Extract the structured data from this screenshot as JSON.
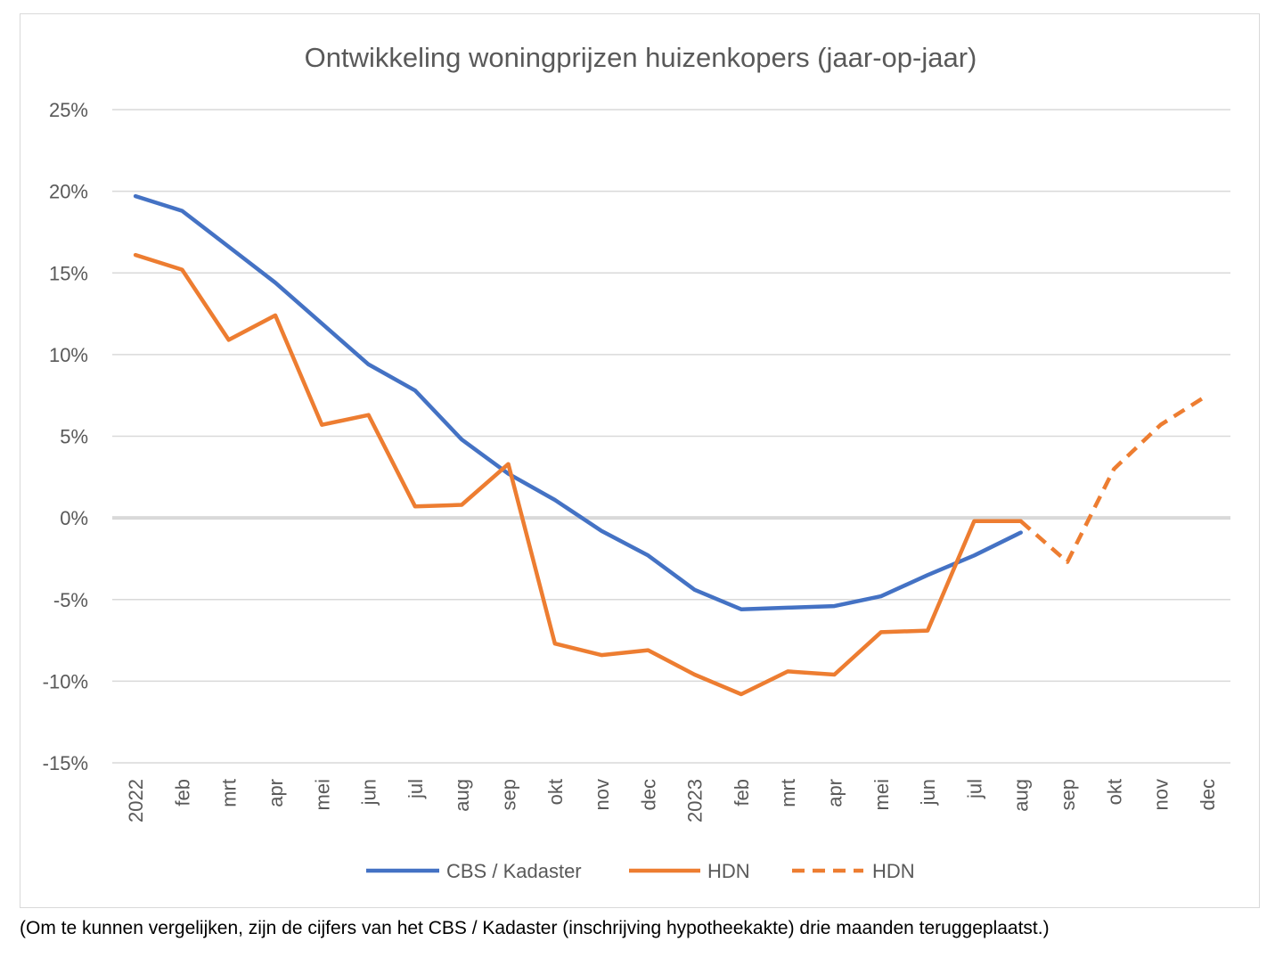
{
  "chart_data": {
    "type": "line",
    "title": "Ontwikkeling woningprijzen huizenkopers (jaar-op-jaar)",
    "xlabel": "",
    "ylabel": "",
    "categories": [
      "2022",
      "feb",
      "mrt",
      "apr",
      "mei",
      "jun",
      "jul",
      "aug",
      "sep",
      "okt",
      "nov",
      "dec",
      "2023",
      "feb",
      "mrt",
      "apr",
      "mei",
      "jun",
      "jul",
      "aug",
      "sep",
      "okt",
      "nov",
      "dec"
    ],
    "y_ticks": [
      "25%",
      "20%",
      "15%",
      "10%",
      "5%",
      "0%",
      "-5%",
      "-10%",
      "-15%"
    ],
    "ylim": [
      -15,
      25
    ],
    "grid": true,
    "legend_position": "bottom",
    "series": [
      {
        "name": "CBS / Kadaster",
        "color": "#4472c4",
        "style": "solid",
        "values": [
          19.7,
          18.8,
          16.6,
          14.4,
          11.9,
          9.4,
          7.8,
          4.8,
          2.7,
          1.1,
          -0.8,
          -2.3,
          -4.4,
          -5.6,
          -5.5,
          -5.4,
          -4.8,
          -3.5,
          -2.3,
          -0.9,
          null,
          null,
          null,
          null
        ]
      },
      {
        "name": "HDN",
        "color": "#ed7d31",
        "style": "solid",
        "values": [
          16.1,
          15.2,
          10.9,
          12.4,
          5.7,
          6.3,
          0.7,
          0.8,
          3.3,
          -7.7,
          -8.4,
          -8.1,
          -9.6,
          -10.8,
          -9.4,
          -9.6,
          -7.0,
          -6.9,
          -0.2,
          -0.2,
          null,
          null,
          null,
          null
        ]
      },
      {
        "name": "HDN",
        "color": "#ed7d31",
        "style": "dashed",
        "values": [
          null,
          null,
          null,
          null,
          null,
          null,
          null,
          null,
          null,
          null,
          null,
          null,
          null,
          null,
          null,
          null,
          null,
          null,
          null,
          -0.2,
          -2.7,
          3.0,
          5.7,
          7.5
        ]
      }
    ]
  },
  "footnote": "(Om te kunnen vergelijken, zijn de cijfers van het CBS / Kadaster (inschrijving hypotheekakte) drie maanden teruggeplaatst.)"
}
